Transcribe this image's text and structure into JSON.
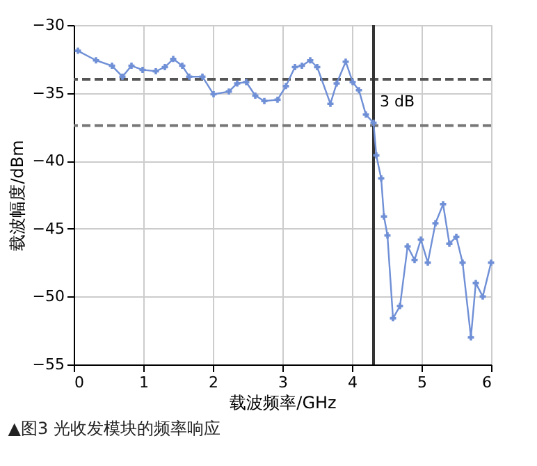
{
  "chart_data": {
    "type": "line",
    "xlabel": "载波频率/GHz",
    "ylabel": "载波幅度/dBm",
    "x": [
      0.06,
      0.32,
      0.55,
      0.7,
      0.83,
      0.99,
      1.18,
      1.31,
      1.43,
      1.56,
      1.66,
      1.85,
      2.01,
      2.23,
      2.35,
      2.48,
      2.61,
      2.74,
      2.93,
      3.05,
      3.18,
      3.28,
      3.4,
      3.5,
      3.69,
      3.78,
      3.91,
      4.01,
      4.1,
      4.2,
      4.31,
      4.35,
      4.42,
      4.46,
      4.51,
      4.59,
      4.69,
      4.8,
      4.9,
      4.99,
      5.09,
      5.2,
      5.31,
      5.4,
      5.5,
      5.59,
      5.71,
      5.78,
      5.88,
      6.0
    ],
    "series": [
      {
        "color": "#6f8fd6",
        "values": [
          -31.9,
          -32.6,
          -33.0,
          -33.8,
          -33.0,
          -33.3,
          -33.4,
          -33.1,
          -32.5,
          -33.0,
          -33.8,
          -33.8,
          -35.1,
          -34.9,
          -34.3,
          -34.2,
          -35.2,
          -35.6,
          -35.5,
          -34.5,
          -33.1,
          -33.0,
          -32.6,
          -33.1,
          -35.8,
          -34.3,
          -32.7,
          -34.2,
          -34.8,
          -36.6,
          -37.2,
          -39.6,
          -41.3,
          -44.1,
          -45.5,
          -51.6,
          -50.7,
          -46.3,
          -47.3,
          -45.8,
          -47.5,
          -44.6,
          -43.2,
          -46.1,
          -45.6,
          -47.5,
          -53.0,
          -49.0,
          -50.0,
          -47.5
        ]
      }
    ],
    "xlim": [
      0,
      6
    ],
    "xticks": [
      0,
      1,
      2,
      3,
      4,
      5,
      6
    ],
    "ylim": [
      -55,
      -30
    ],
    "yticks": [
      -55,
      -50,
      -45,
      -40,
      -35,
      -30
    ],
    "grid": true,
    "marker": "cross",
    "line_style": "solid",
    "ref_lines": [
      {
        "axis": "y",
        "value": -34,
        "color": "#555555",
        "line_style": "dashed"
      },
      {
        "axis": "y",
        "value": -37.4,
        "color": "#777777",
        "line_style": "dashed"
      },
      {
        "axis": "x",
        "value": 4.31,
        "color": "#333333",
        "line_style": "solid"
      }
    ],
    "annotations": [
      {
        "text": "3 dB",
        "x": 4.4,
        "y": -35.7
      },
      "▲图3 光收发模块的频率响应"
    ]
  }
}
